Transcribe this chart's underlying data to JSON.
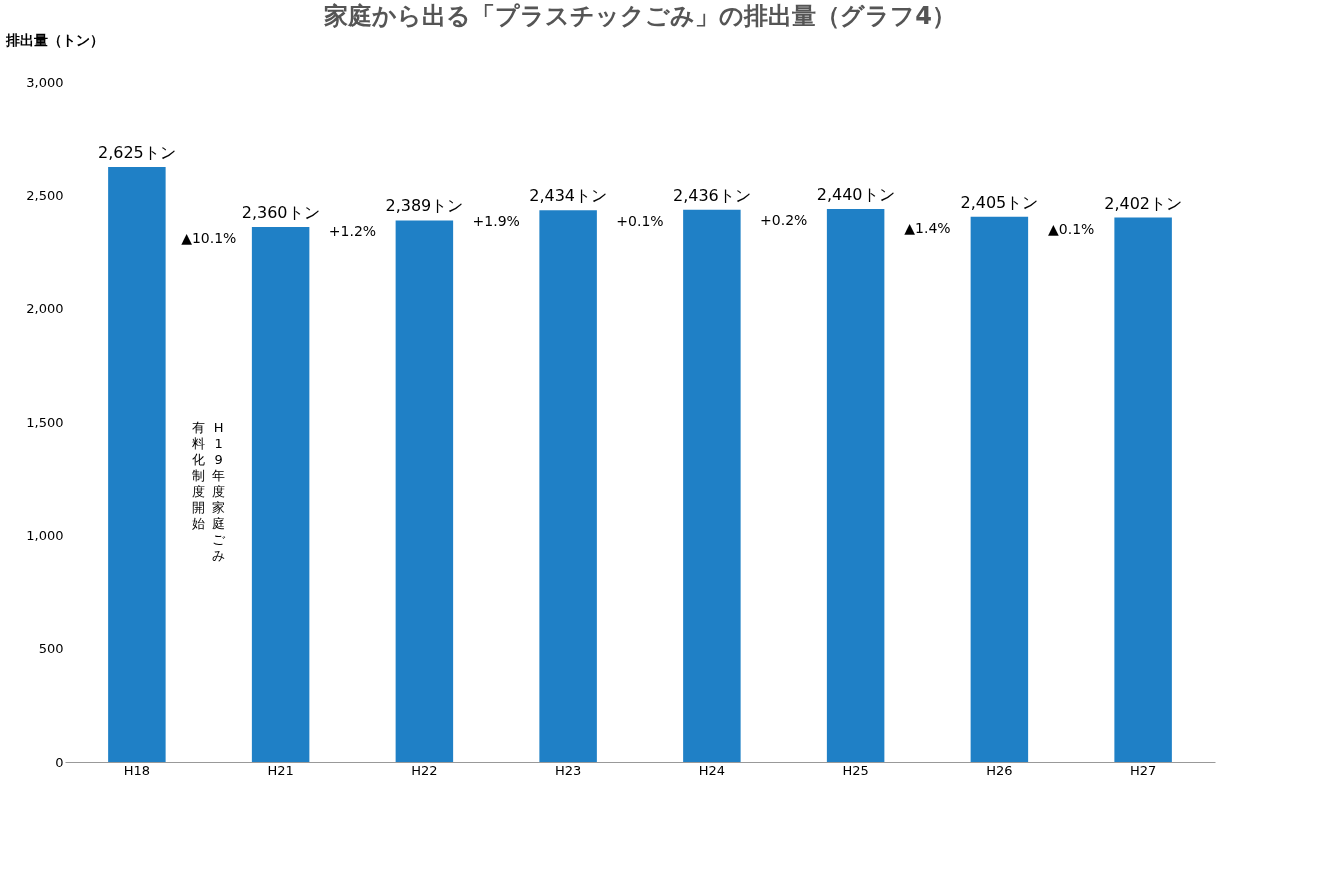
{
  "chart_data": {
    "type": "bar",
    "title": "家庭から出る「プラスチックごみ」の排出量（グラフ4）",
    "ylabel": "排出量（トン）",
    "categories": [
      "H18",
      "H21",
      "H22",
      "H23",
      "H24",
      "H25",
      "H26",
      "H27"
    ],
    "values": [
      2625,
      2360,
      2389,
      2434,
      2436,
      2440,
      2405,
      2402
    ],
    "value_labels": [
      "2,625トン",
      "2,360トン",
      "2,389トン",
      "2,434トン",
      "2,436トン",
      "2,440トン",
      "2,405トン",
      "2,402トン"
    ],
    "color": "#1f80c6",
    "ylim": [
      0,
      3000
    ],
    "yticks": [
      0,
      {
        "value": 500,
        "label": "500"
      },
      {
        "value": 1000,
        "label": "1,000"
      },
      {
        "value": 1500,
        "label": "1,500"
      },
      {
        "value": 2000,
        "label": "2,000"
      },
      {
        "value": 2500,
        "label": "2,500"
      },
      {
        "value": 3000,
        "label": "3,000"
      }
    ],
    "grid": false,
    "annotations": [
      "▲10.1%",
      "+1.2%",
      "+1.9%",
      "+0.1%",
      "+0.2%",
      "▲1.4%",
      "▲0.1%",
      "H19年度家庭ごみ",
      "有料化制度開始"
    ]
  }
}
